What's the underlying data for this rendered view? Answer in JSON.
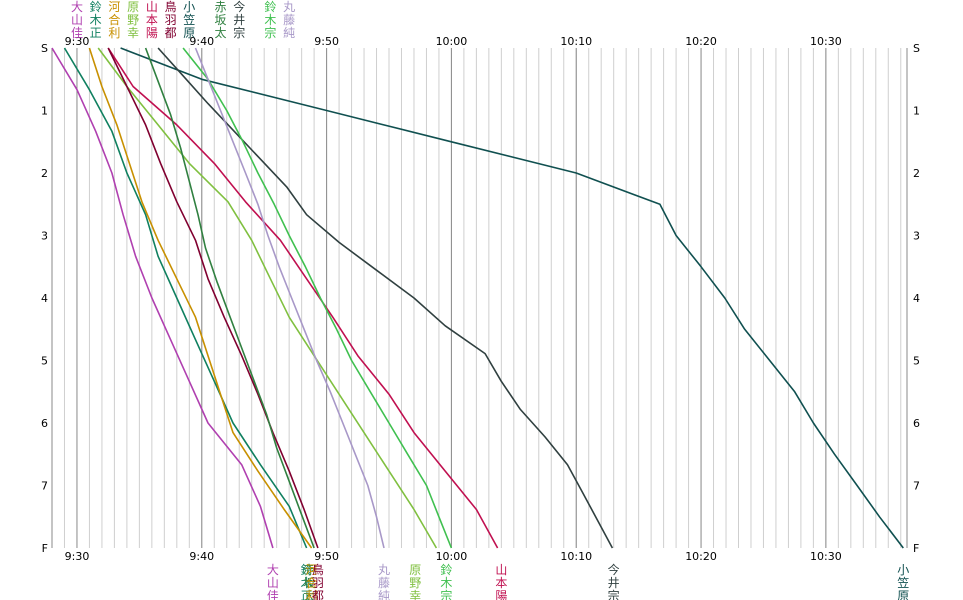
{
  "chart_data": {
    "type": "line",
    "title": "",
    "xlabel": "",
    "ylabel": "",
    "x_ticks": [
      "9:30",
      "9:40",
      "9:50",
      "10:00",
      "10:10",
      "10:20",
      "10:30"
    ],
    "x_tick_values": [
      30,
      40,
      50,
      60,
      70,
      80,
      90
    ],
    "xlim": [
      28,
      96.5
    ],
    "y_ticks": [
      "S",
      "1",
      "2",
      "3",
      "4",
      "5",
      "6",
      "7",
      "F"
    ],
    "y_tick_values": [
      0,
      1,
      2,
      3,
      4,
      5,
      6,
      7,
      8
    ],
    "grid": true,
    "checkpoints": [
      0,
      1,
      2,
      3,
      4,
      5,
      6,
      7,
      8
    ],
    "series": [
      {
        "name": "大山佳",
        "color": "#b040b0",
        "x": [
          28.0,
          30.0,
          31.5,
          32.8,
          33.7,
          34.7,
          36.0,
          37.5,
          39.0,
          40.5,
          43.2,
          44.7,
          45.7
        ]
      },
      {
        "name": "鈴木正",
        "color": "#108060",
        "x": [
          29.0,
          31.0,
          32.8,
          34.0,
          35.5,
          36.5,
          38.0,
          39.5,
          41.0,
          42.5,
          44.7,
          47.0,
          48.4
        ]
      },
      {
        "name": "河合利",
        "color": "#c89000",
        "x": [
          31.0,
          32.0,
          33.2,
          34.2,
          35.2,
          36.5,
          38.0,
          39.5,
          40.5,
          41.5,
          42.5,
          44.5,
          46.6,
          48.8
        ]
      },
      {
        "name": "原野幸",
        "color": "#80c040",
        "x": [
          31.7,
          34.0,
          36.5,
          39.0,
          42.1,
          44.0,
          45.5,
          47.0,
          49.0,
          51.0,
          53.0,
          55.0,
          57.0,
          58.8
        ]
      },
      {
        "name": "山本陽",
        "color": "#c01050",
        "x": [
          32.5,
          34.5,
          38.0,
          41.0,
          43.5,
          46.3,
          48.4,
          50.5,
          52.5,
          55.0,
          57.0,
          59.5,
          62.0,
          63.7
        ]
      },
      {
        "name": "鳥羽都",
        "color": "#800030",
        "x": [
          32.5,
          34.0,
          35.5,
          36.7,
          38.0,
          39.5,
          40.5,
          41.8,
          43.2,
          44.5,
          45.7,
          47.0,
          48.2,
          49.3
        ]
      },
      {
        "name": "小笠原",
        "color": "#105050",
        "x": [
          33.5,
          40.0,
          50.0,
          60.0,
          70.0,
          76.7,
          78.0,
          80.0,
          81.9,
          83.5,
          85.5,
          87.5,
          89.0,
          90.7,
          92.5,
          94.3,
          96.2
        ]
      },
      {
        "name": "赤坂太",
        "color": "#308040",
        "x": [
          35.5,
          36.5,
          37.5,
          38.3,
          39.0,
          39.7,
          40.3,
          41.2,
          42.2,
          43.2,
          44.2,
          45.2,
          46.0,
          47.0,
          48.0,
          49.0
        ]
      },
      {
        "name": "今井宗",
        "color": "#304040",
        "x": [
          36.5,
          38.5,
          40.5,
          42.6,
          44.7,
          46.8,
          48.4,
          51.0,
          54.0,
          57.0,
          59.5,
          62.7,
          64.0,
          65.5,
          67.5,
          69.3,
          70.5,
          71.7,
          72.9
        ]
      },
      {
        "name": "鈴木宗",
        "color": "#40c050",
        "x": [
          38.5,
          40.5,
          42.0,
          43.3,
          44.5,
          45.8,
          47.0,
          48.3,
          49.5,
          50.8,
          52.0,
          53.5,
          55.0,
          56.5,
          58.0,
          59.0,
          60.0
        ]
      },
      {
        "name": "丸藤純",
        "color": "#a898c8",
        "x": [
          39.5,
          40.5,
          41.5,
          42.5,
          43.5,
          44.5,
          45.3,
          46.2,
          47.2,
          48.2,
          49.2,
          50.3,
          51.3,
          52.3,
          53.3,
          54.0,
          54.6
        ]
      }
    ]
  },
  "top_labels": [
    {
      "x": 30.0,
      "lines": [
        "大",
        "山",
        "佳"
      ],
      "color": "#b040b0"
    },
    {
      "x": 31.5,
      "lines": [
        "鈴",
        "木",
        "正"
      ],
      "color": "#108060"
    },
    {
      "x": 33.0,
      "lines": [
        "河",
        "合",
        "利"
      ],
      "color": "#c89000"
    },
    {
      "x": 34.5,
      "lines": [
        "原",
        "野",
        "幸"
      ],
      "color": "#80c040"
    },
    {
      "x": 36.0,
      "lines": [
        "山",
        "本",
        "陽"
      ],
      "color": "#c01050"
    },
    {
      "x": 37.5,
      "lines": [
        "鳥",
        "羽",
        "都"
      ],
      "color": "#800030"
    },
    {
      "x": 39.0,
      "lines": [
        "小",
        "笠",
        "原"
      ],
      "color": "#105050"
    },
    {
      "x": 41.5,
      "lines": [
        "赤",
        "坂",
        "太"
      ],
      "color": "#308040"
    },
    {
      "x": 43.0,
      "lines": [
        "今",
        "井",
        "宗"
      ],
      "color": "#304040"
    },
    {
      "x": 45.5,
      "lines": [
        "鈴",
        "木",
        "宗"
      ],
      "color": "#40c050"
    },
    {
      "x": 47.0,
      "lines": [
        "丸",
        "藤",
        "純"
      ],
      "color": "#a898c8"
    }
  ],
  "bottom_labels": [
    {
      "x": 45.7,
      "lines": [
        "大",
        "山",
        "佳"
      ],
      "color": "#b040b0"
    },
    {
      "x": 48.4,
      "lines": [
        "鈴",
        "木",
        "正"
      ],
      "color": "#108060"
    },
    {
      "x": 48.6,
      "lines": [
        "赤",
        "坂",
        "太"
      ],
      "color": "#308040"
    },
    {
      "x": 48.8,
      "lines": [
        "河",
        "合",
        "利"
      ],
      "color": "#c89000"
    },
    {
      "x": 49.3,
      "lines": [
        "鳥",
        "羽",
        "都"
      ],
      "color": "#800030"
    },
    {
      "x": 54.6,
      "lines": [
        "丸",
        "藤",
        "純"
      ],
      "color": "#a898c8"
    },
    {
      "x": 57.1,
      "lines": [
        "原",
        "野",
        "幸"
      ],
      "color": "#80c040"
    },
    {
      "x": 59.6,
      "lines": [
        "鈴",
        "木",
        "宗"
      ],
      "color": "#40c050"
    },
    {
      "x": 64.0,
      "lines": [
        "山",
        "本",
        "陽"
      ],
      "color": "#c01050"
    },
    {
      "x": 73.0,
      "lines": [
        "今",
        "井",
        "宗"
      ],
      "color": "#304040"
    },
    {
      "x": 96.2,
      "lines": [
        "小",
        "笠",
        "原"
      ],
      "color": "#105050"
    }
  ]
}
